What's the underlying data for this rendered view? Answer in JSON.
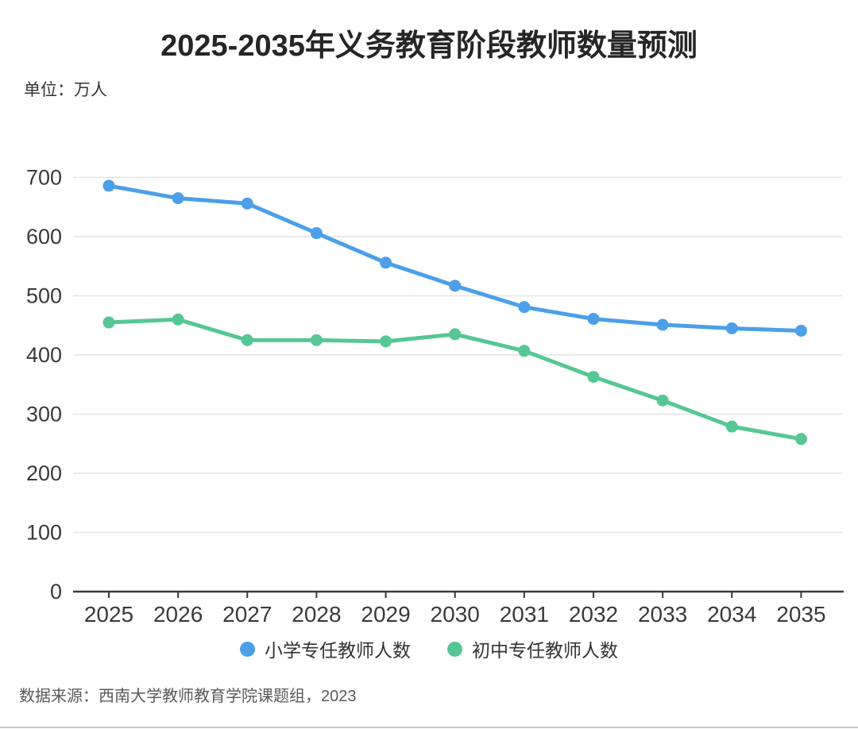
{
  "page": {
    "title": "2025-2035年义务教育阶段教师数量预测",
    "unit_label": "单位：万人",
    "source_note": "数据来源：西南大学教师教育学院课题组，2023"
  },
  "colors": {
    "primary_series": "#4C9FE8",
    "secondary_series": "#56C794",
    "grid_line": "#e4e4e4",
    "axis_line": "#3a3a3a",
    "tick_text": "#3a3a3a",
    "title_text": "#262626",
    "muted_text": "#5a5a5a",
    "bottom_divider": "#c9c9c9"
  },
  "chart_data": {
    "type": "line",
    "title": "2025-2035年义务教育阶段教师数量预测",
    "unit": "万人",
    "categories": [
      "2025",
      "2026",
      "2027",
      "2028",
      "2029",
      "2030",
      "2031",
      "2032",
      "2033",
      "2034",
      "2035"
    ],
    "series": [
      {
        "name": "小学专任教师人数",
        "color": "#4C9FE8",
        "values": [
          686,
          665,
          656,
          606,
          556,
          517,
          481,
          461,
          451,
          445,
          441
        ]
      },
      {
        "name": "初中专任教师人数",
        "color": "#56C794",
        "values": [
          455,
          460,
          425,
          425,
          423,
          435,
          407,
          363,
          323,
          279,
          258
        ]
      }
    ],
    "ylim": [
      0,
      700
    ],
    "yticks": [
      0,
      100,
      200,
      300,
      400,
      500,
      600,
      700
    ],
    "grid": true,
    "legend_position": "bottom",
    "marker": "circle"
  }
}
